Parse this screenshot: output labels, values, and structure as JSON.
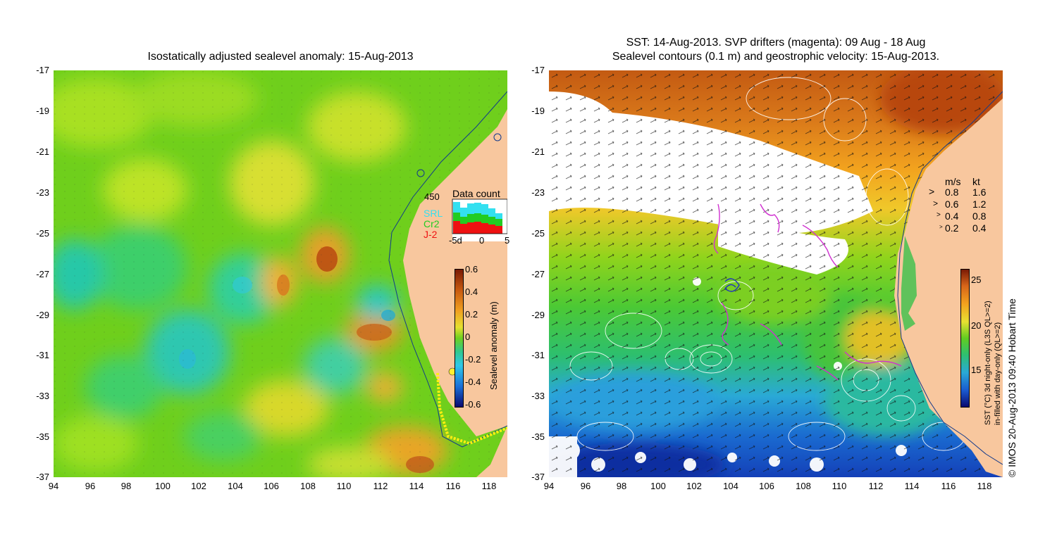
{
  "left_panel": {
    "title": "Isostatically adjusted sealevel anomaly: 15-Aug-2013",
    "colorbar": {
      "label": "Sealevel anomaly (m)",
      "ticks": [
        "0.6",
        "0.4",
        "0.2",
        "0",
        "-0.2",
        "-0.4",
        "-0.6"
      ]
    },
    "data_count": {
      "title": "Data count",
      "max_label": "450",
      "legend": [
        {
          "name": "SRL",
          "color": "#33e0f0"
        },
        {
          "name": "Cr2",
          "color": "#22cc22"
        },
        {
          "name": "J-2",
          "color": "#ee1111"
        }
      ],
      "x_ticks": [
        "-5d",
        "0",
        "5"
      ]
    }
  },
  "right_panel": {
    "title_line1": "SST: 14-Aug-2013. SVP drifters (magenta): 09 Aug - 18 Aug",
    "title_line2": "Sealevel contours (0.1 m) and geostrophic velocity: 15-Aug-2013.",
    "speed_legend": {
      "header_ms": "m/s",
      "header_kt": "kt",
      "rows": [
        {
          "ms": "0.8",
          "kt": "1.6"
        },
        {
          "ms": "0.6",
          "kt": "1.2"
        },
        {
          "ms": "0.4",
          "kt": "0.8"
        },
        {
          "ms": "0.2",
          "kt": "0.4"
        }
      ]
    },
    "colorbar": {
      "label": "SST (°C) 3d night-only (L3S QL>=2)",
      "label2": "in-filled with day-only (QL>=2)",
      "ticks": [
        "25",
        "20",
        "15"
      ]
    },
    "credit": "© IMOS 20-Aug-2013 09:40 Hobart Time"
  },
  "y_ticks": [
    "-17",
    "-19",
    "-21",
    "-23",
    "-25",
    "-27",
    "-29",
    "-31",
    "-33",
    "-35",
    "-37"
  ],
  "x_ticks": [
    "94",
    "96",
    "98",
    "100",
    "102",
    "104",
    "106",
    "108",
    "110",
    "112",
    "114",
    "116",
    "118"
  ],
  "colors": {
    "land": "#f8c79e",
    "sea_base": "#7fd321"
  }
}
